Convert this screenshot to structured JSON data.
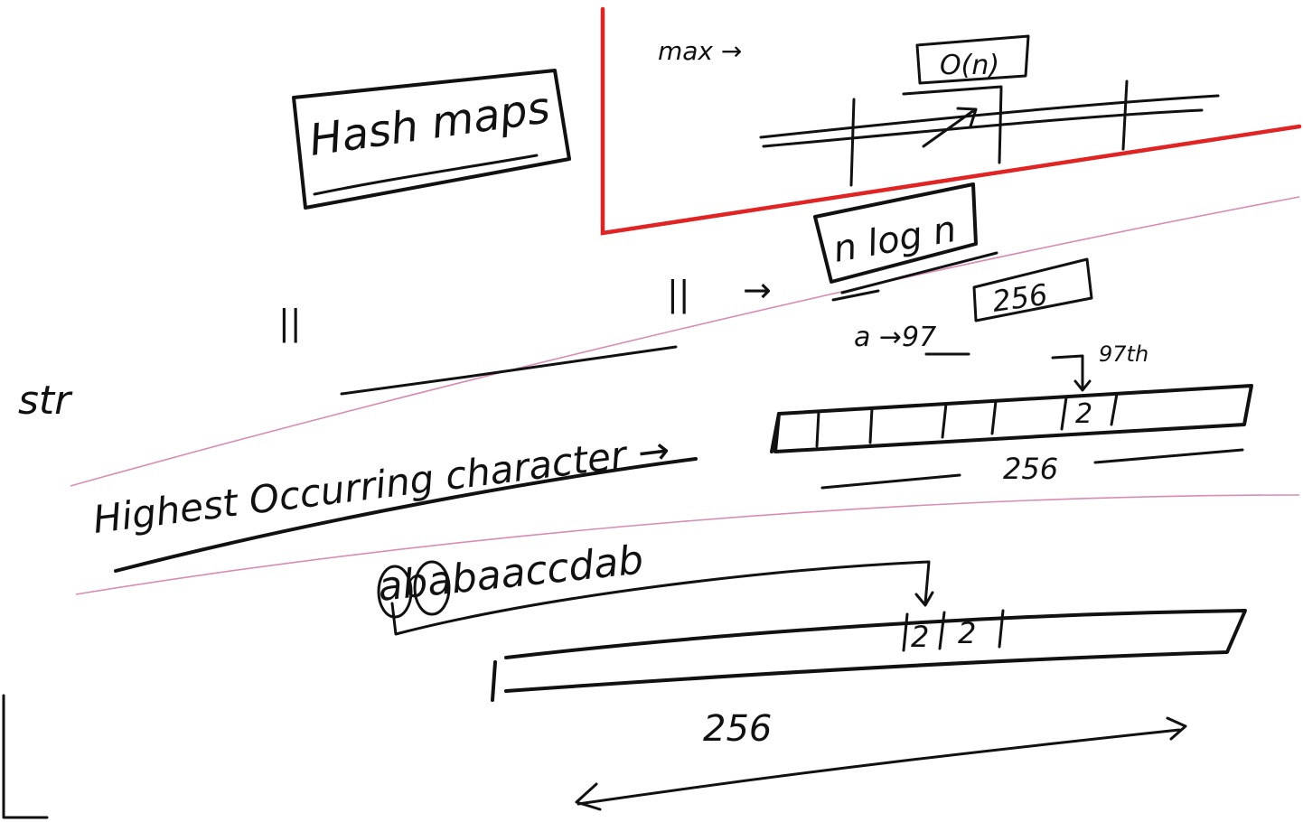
{
  "colors": {
    "ink": "#111111",
    "highlight_box": "#e02424",
    "ruled_line": "#d98cb3",
    "paper": "#ffffff"
  },
  "notes": {
    "title": "Hash maps",
    "max_label": "max →",
    "o_n": "O(n)",
    "n_log_n": "n log n",
    "size_256_box": "256",
    "a_to_97": "a →97",
    "index_97th": "97th",
    "str_label": "str",
    "equals_mark_1": "||",
    "equals_mark_2": "||",
    "arrow": "→",
    "highest_occurring": "Highest   Occurring   character →",
    "cell_value_top": "2",
    "size_256_mid": "256",
    "sample_string": "ababaaccdab",
    "cell_a": "2",
    "cell_b": "2",
    "size_256_bottom": "256"
  }
}
